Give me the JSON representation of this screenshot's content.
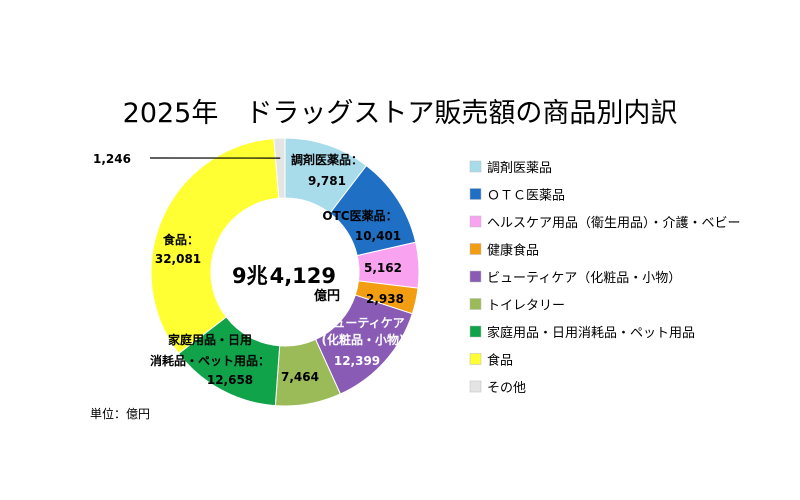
{
  "chart_data": {
    "type": "pie",
    "title": "2025年　ドラッグストア販売額の商品別内訳",
    "unit_label": "単位：億円",
    "center_total": {
      "main": "9兆",
      "value": "4,129",
      "unit": "億円"
    },
    "series": [
      {
        "name": "調剤医薬品",
        "value": 9781,
        "value_label": "9,781",
        "label": "調剤医薬品：",
        "color": "#a8dcea"
      },
      {
        "name": "ＯＴＣ医薬品",
        "value": 10401,
        "value_label": "10,401",
        "label": "OTC医薬品：",
        "color": "#1f6fc4"
      },
      {
        "name": "ヘルスケア用品（衛生用品）・介護・ベビー",
        "value": 5162,
        "value_label": "5,162",
        "label": "",
        "color": "#f9a3f0"
      },
      {
        "name": "健康食品",
        "value": 2938,
        "value_label": "2,938",
        "label": "",
        "color": "#f29d12"
      },
      {
        "name": "ビューティケア（化粧品・小物）",
        "value": 12399,
        "value_label": "12,399",
        "label": "ビューティケア",
        "label2": "(化粧品・小物)",
        "color": "#8a5bb5"
      },
      {
        "name": "トイレタリー",
        "value": 7464,
        "value_label": "7,464",
        "label": "",
        "color": "#9bbb59"
      },
      {
        "name": "家庭用品・日用消耗品・ペット用品",
        "value": 12658,
        "value_label": "12,658",
        "label": "家庭用品・日用",
        "label2": "消耗品・ペット用品：",
        "color": "#10a34a"
      },
      {
        "name": "食品",
        "value": 32081,
        "value_label": "32,081",
        "label": "食品：",
        "color": "#ffff33"
      },
      {
        "name": "その他",
        "value": 1246,
        "value_label": "1,246",
        "label": "",
        "color": "#e4e4e4"
      }
    ]
  }
}
